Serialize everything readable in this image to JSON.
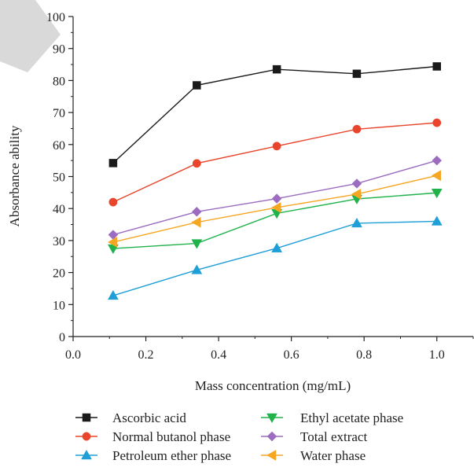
{
  "chart_data": {
    "type": "line",
    "title": "",
    "xlabel": "Mass concentration (mg/mL)",
    "ylabel": "Absorbance ability",
    "xlim": [
      0.0,
      1.1
    ],
    "ylim": [
      0,
      100
    ],
    "x_ticks": [
      "0.0",
      "0.2",
      "0.4",
      "0.6",
      "0.8",
      "1.0"
    ],
    "y_ticks": [
      "0",
      "10",
      "20",
      "30",
      "40",
      "50",
      "60",
      "70",
      "80",
      "90",
      "100"
    ],
    "grid": false,
    "legend_position": "bottom",
    "x": [
      0.11,
      0.34,
      0.56,
      0.78,
      1.0
    ],
    "series": [
      {
        "name": "Ascorbic acid",
        "values": [
          54.2,
          78.5,
          83.5,
          82.1,
          84.4
        ],
        "color": "#1a1a1a",
        "marker": "square"
      },
      {
        "name": "Normal butanol phase",
        "values": [
          42.0,
          54.1,
          59.5,
          64.8,
          66.8
        ],
        "color": "#e8452c",
        "marker": "circle"
      },
      {
        "name": "Petroleum ether phase",
        "values": [
          12.8,
          20.8,
          27.6,
          35.4,
          36.0
        ],
        "color": "#1e9fd8",
        "marker": "triangle-up"
      },
      {
        "name": "Ethyl acetate phase",
        "values": [
          27.5,
          29.1,
          38.5,
          43.0,
          44.9
        ],
        "color": "#21b24b",
        "marker": "triangle-down"
      },
      {
        "name": "Total extract",
        "values": [
          31.8,
          39.0,
          43.1,
          47.8,
          55.0
        ],
        "color": "#9b6cbf",
        "marker": "diamond"
      },
      {
        "name": "Water phase",
        "values": [
          29.5,
          35.7,
          40.3,
          44.5,
          50.3
        ],
        "color": "#f5a623",
        "marker": "triangle-left"
      }
    ]
  }
}
